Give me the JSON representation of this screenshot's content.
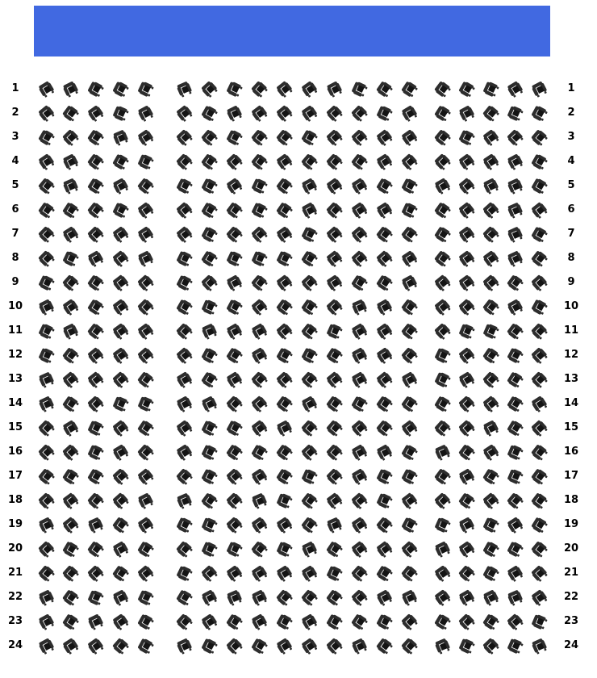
{
  "screen": {
    "color": "#4169e1"
  },
  "seat_map": {
    "row_labels": [
      "1",
      "2",
      "3",
      "4",
      "5",
      "6",
      "7",
      "8",
      "9",
      "10",
      "11",
      "12",
      "13",
      "14",
      "15",
      "16",
      "17",
      "18",
      "19",
      "20",
      "21",
      "22",
      "23",
      "24"
    ],
    "row_count": 24,
    "sections": [
      {
        "name": "left-block",
        "seats_per_row": 5
      },
      {
        "name": "center-block",
        "seats_per_row": 10
      },
      {
        "name": "right-block",
        "seats_per_row": 5
      }
    ],
    "seats_per_row_total": 20,
    "total_seats": 480,
    "seat_color": "#2d2d2d",
    "seat_cushion_color": "#141414",
    "seat_icon": "chair-icon"
  }
}
